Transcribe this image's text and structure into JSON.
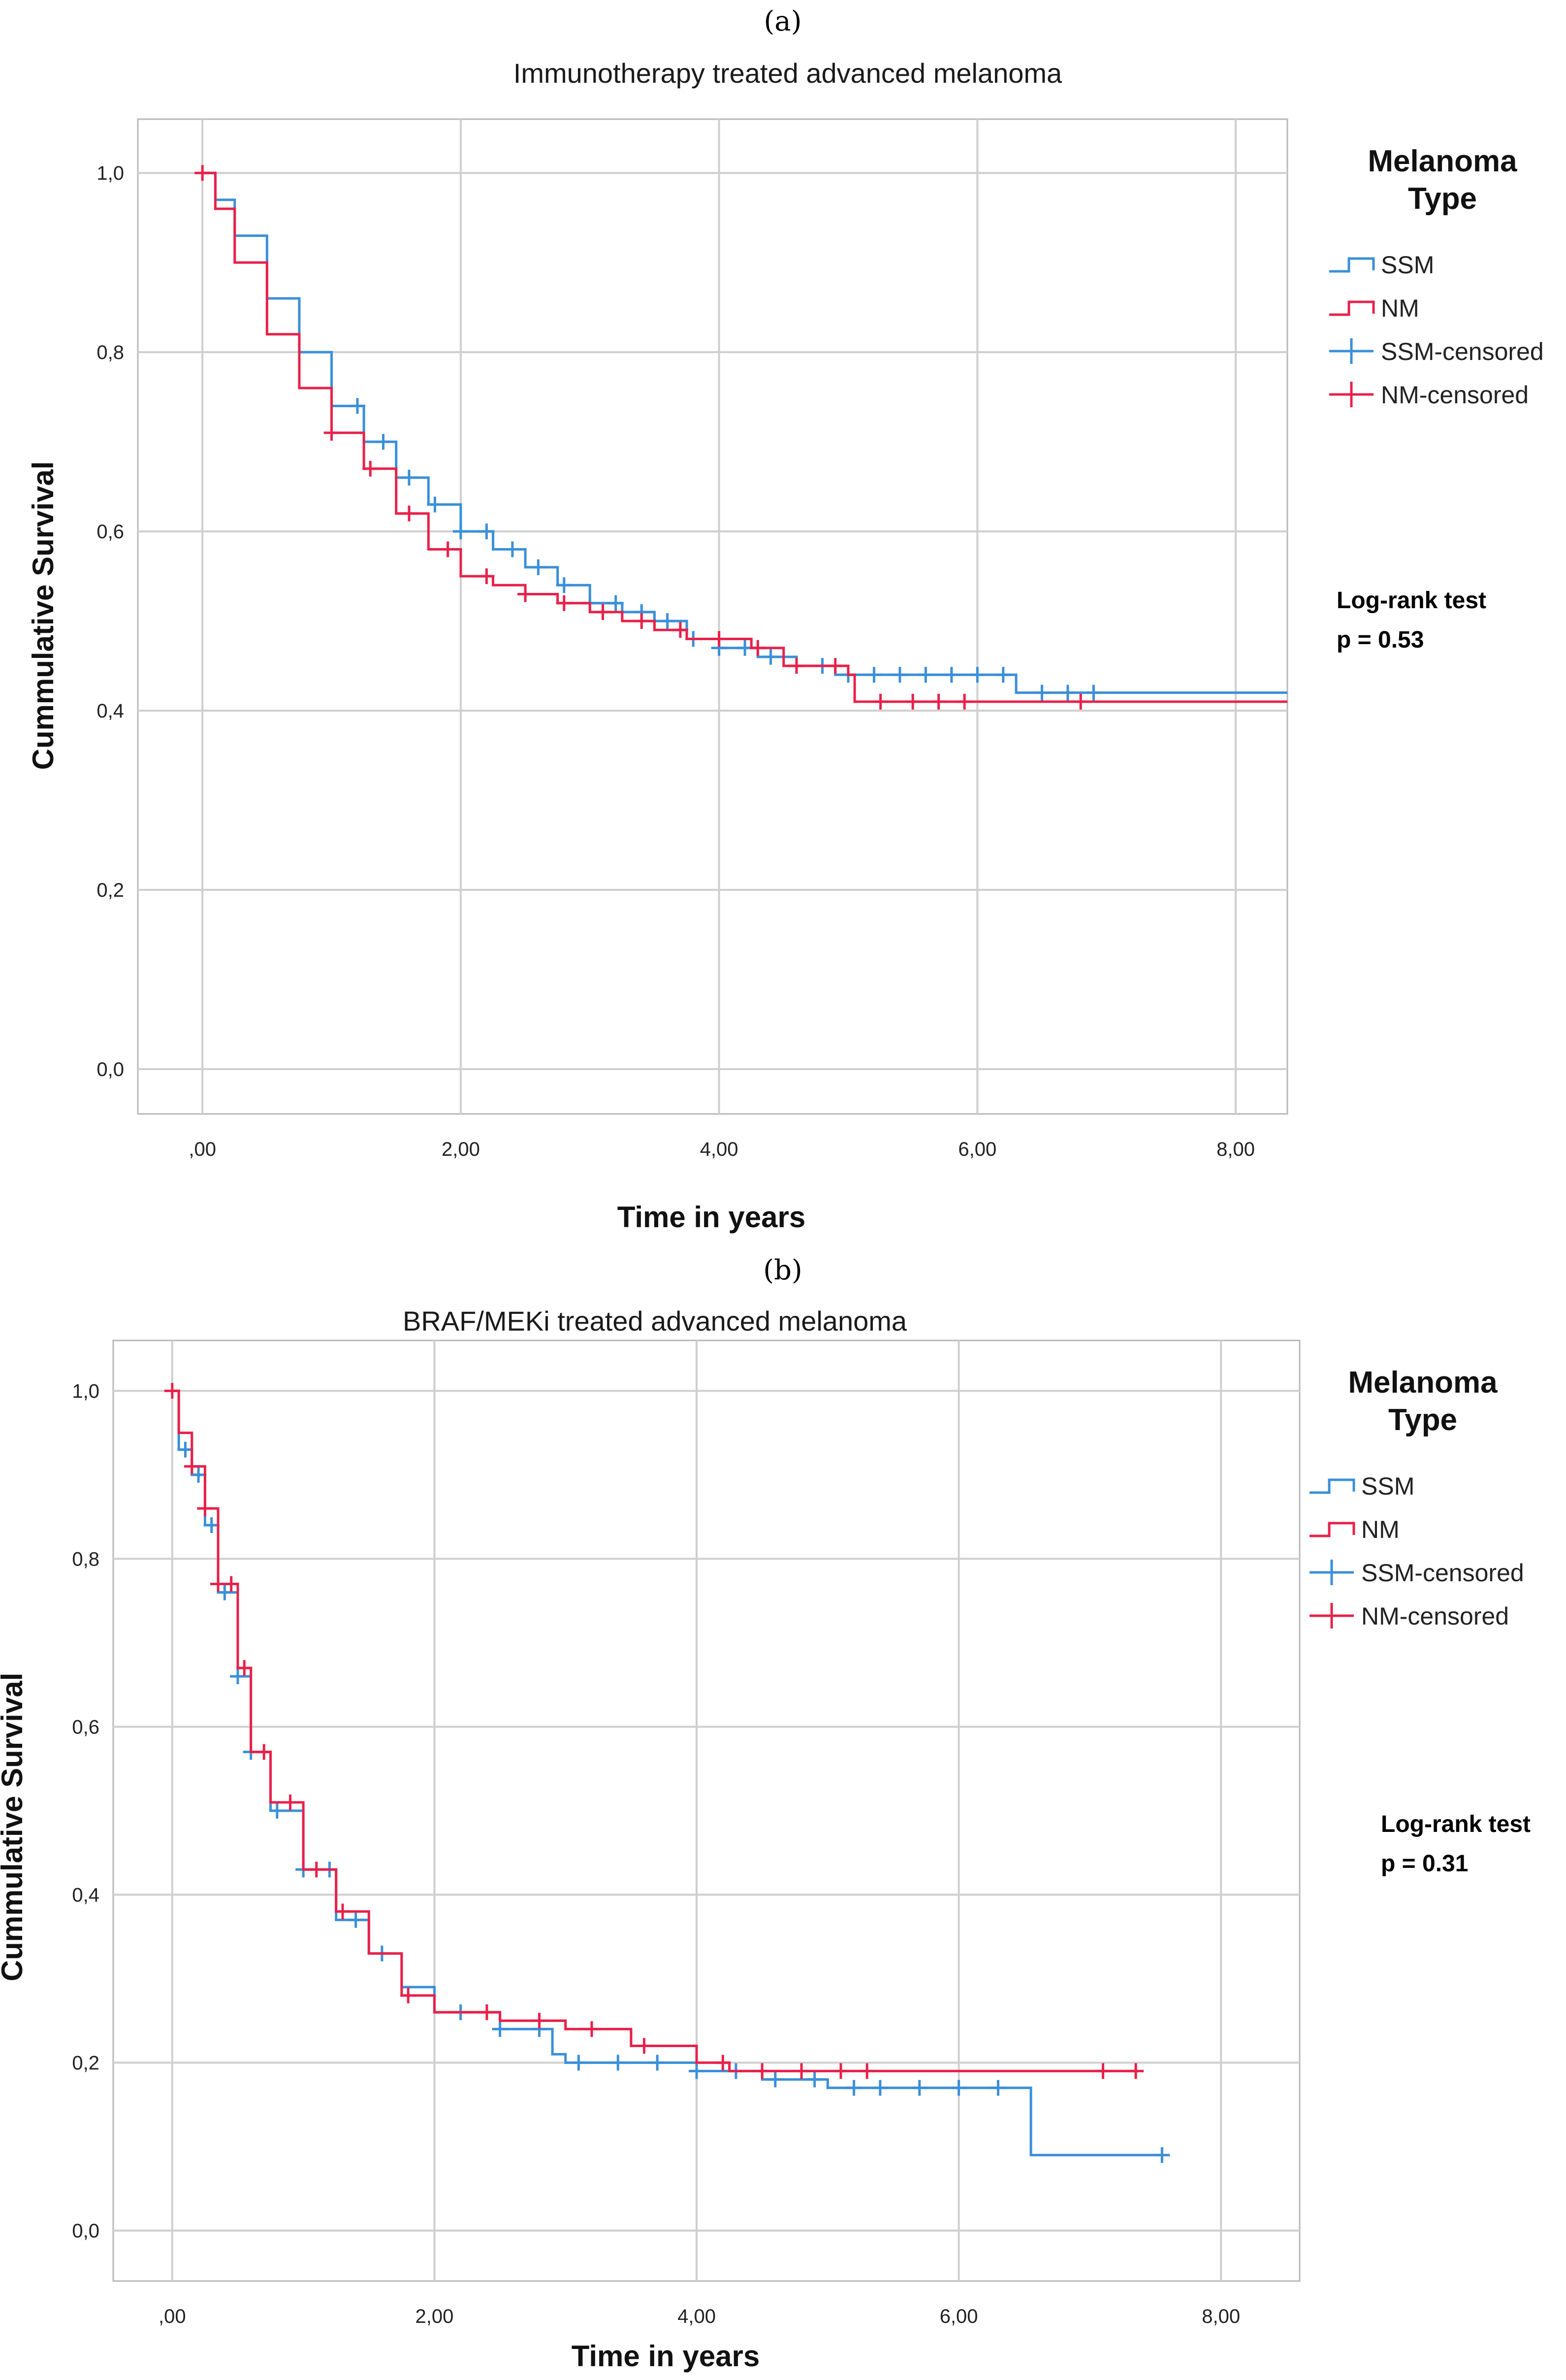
{
  "colors": {
    "SSM": "#3a8fd9",
    "NM": "#e8214a"
  },
  "chart_data": [
    {
      "type": "line",
      "panel_label": "(a)",
      "title": "Immunotherapy treated advanced melanoma",
      "xlabel": "Time in years",
      "ylabel": "Cummulative Survival",
      "xlim": [
        -0.5,
        8.4
      ],
      "ylim": [
        -0.05,
        1.06
      ],
      "x_ticks": [
        0,
        2,
        4,
        6,
        8
      ],
      "x_tick_labels": [
        ",00",
        "2,00",
        "4,00",
        "6,00",
        "8,00"
      ],
      "y_ticks": [
        0,
        0.2,
        0.4,
        0.6,
        0.8,
        1.0
      ],
      "y_tick_labels": [
        "0,0",
        "0,2",
        "0,4",
        "0,6",
        "0,8",
        "1,0"
      ],
      "grid": true,
      "legend": {
        "title": "Melanoma Type",
        "title_lines": [
          "Melanoma",
          "Type"
        ],
        "placement": "right",
        "entries": [
          "SSM",
          "NM",
          "SSM-censored",
          "NM-censored"
        ]
      },
      "annotation": {
        "lines": [
          "Log-rank test",
          "p = 0.53"
        ]
      },
      "series": [
        {
          "name": "SSM",
          "x": [
            0,
            0.1,
            0.25,
            0.5,
            0.75,
            1.0,
            1.25,
            1.5,
            1.75,
            2.0,
            2.25,
            2.5,
            2.75,
            3.0,
            3.25,
            3.5,
            3.75,
            4.0,
            4.3,
            4.6,
            4.9,
            5.3,
            5.7,
            6.0,
            6.25,
            6.3,
            7.0,
            8.4
          ],
          "values": [
            1.0,
            0.97,
            0.93,
            0.86,
            0.8,
            0.74,
            0.7,
            0.66,
            0.63,
            0.6,
            0.58,
            0.56,
            0.54,
            0.52,
            0.51,
            0.5,
            0.48,
            0.47,
            0.46,
            0.45,
            0.44,
            0.44,
            0.44,
            0.44,
            0.44,
            0.42,
            0.42,
            0.42
          ],
          "censored_x": [
            1.2,
            1.4,
            1.6,
            1.8,
            2.0,
            2.2,
            2.4,
            2.6,
            2.8,
            3.0,
            3.2,
            3.4,
            3.6,
            3.8,
            4.0,
            4.2,
            4.4,
            4.6,
            4.8,
            5.0,
            5.2,
            5.4,
            5.6,
            5.8,
            6.0,
            6.2,
            6.5,
            6.7,
            6.9
          ]
        },
        {
          "name": "NM",
          "x": [
            0,
            0.1,
            0.25,
            0.5,
            0.75,
            1.0,
            1.25,
            1.5,
            1.75,
            2.0,
            2.25,
            2.5,
            2.75,
            3.0,
            3.25,
            3.5,
            3.75,
            4.0,
            4.25,
            4.5,
            4.75,
            5.0,
            5.05,
            5.5,
            6.0,
            7.0,
            8.4
          ],
          "values": [
            1.0,
            0.96,
            0.9,
            0.82,
            0.76,
            0.71,
            0.67,
            0.62,
            0.58,
            0.55,
            0.54,
            0.53,
            0.52,
            0.51,
            0.5,
            0.49,
            0.48,
            0.48,
            0.47,
            0.45,
            0.45,
            0.44,
            0.41,
            0.41,
            0.41,
            0.41,
            0.41
          ],
          "censored_x": [
            0,
            1.0,
            1.3,
            1.6,
            1.9,
            2.2,
            2.5,
            2.8,
            3.1,
            3.4,
            3.7,
            4.0,
            4.3,
            4.6,
            4.9,
            5.25,
            5.5,
            5.7,
            5.9,
            6.8
          ]
        }
      ]
    },
    {
      "type": "line",
      "panel_label": "(b)",
      "title": "BRAF/MEKi treated advanced melanoma",
      "xlabel": "Time in years",
      "ylabel": "Cummulative Survival",
      "xlim": [
        -0.45,
        8.6
      ],
      "ylim": [
        -0.06,
        1.06
      ],
      "x_ticks": [
        0,
        2,
        4,
        6,
        8
      ],
      "x_tick_labels": [
        ",00",
        "2,00",
        "4,00",
        "6,00",
        "8,00"
      ],
      "y_ticks": [
        0,
        0.2,
        0.4,
        0.6,
        0.8,
        1.0
      ],
      "y_tick_labels": [
        "0,0",
        "0,2",
        "0,4",
        "0,6",
        "0,8",
        "1,0"
      ],
      "grid": true,
      "legend": {
        "title": "Melanoma Type",
        "title_lines": [
          "Melanoma",
          "Type"
        ],
        "placement": "right",
        "entries": [
          "SSM",
          "NM",
          "SSM-censored",
          "NM-censored"
        ]
      },
      "annotation": {
        "lines": [
          "Log-rank test",
          "p = 0.31"
        ]
      },
      "series": [
        {
          "name": "SSM",
          "x": [
            0,
            0.05,
            0.15,
            0.25,
            0.35,
            0.5,
            0.6,
            0.75,
            1.0,
            1.25,
            1.5,
            1.75,
            2.0,
            2.5,
            2.9,
            3.0,
            3.5,
            4.0,
            4.5,
            5.0,
            5.5,
            6.0,
            6.5,
            6.55,
            7.55
          ],
          "values": [
            1.0,
            0.93,
            0.9,
            0.84,
            0.76,
            0.66,
            0.57,
            0.5,
            0.43,
            0.37,
            0.33,
            0.29,
            0.26,
            0.24,
            0.21,
            0.2,
            0.2,
            0.19,
            0.18,
            0.17,
            0.17,
            0.17,
            0.17,
            0.09,
            0.09
          ],
          "censored_x": [
            0.1,
            0.2,
            0.3,
            0.4,
            0.5,
            0.6,
            0.8,
            1.0,
            1.2,
            1.4,
            1.6,
            2.2,
            2.5,
            2.8,
            3.1,
            3.4,
            3.7,
            4.0,
            4.3,
            4.6,
            4.9,
            5.2,
            5.4,
            5.7,
            6.0,
            6.3,
            7.55
          ]
        },
        {
          "name": "NM",
          "x": [
            0,
            0.05,
            0.15,
            0.25,
            0.35,
            0.5,
            0.6,
            0.75,
            1.0,
            1.25,
            1.5,
            1.75,
            2.0,
            2.5,
            3.0,
            3.5,
            4.0,
            4.25,
            4.5,
            5.0,
            5.5,
            6.0,
            7.0,
            7.35
          ],
          "values": [
            1.0,
            0.95,
            0.91,
            0.86,
            0.77,
            0.67,
            0.57,
            0.51,
            0.43,
            0.38,
            0.33,
            0.28,
            0.26,
            0.25,
            0.24,
            0.22,
            0.2,
            0.19,
            0.19,
            0.19,
            0.19,
            0.19,
            0.19,
            0.19
          ],
          "censored_x": [
            0,
            0.15,
            0.25,
            0.35,
            0.45,
            0.55,
            0.7,
            0.9,
            1.1,
            1.3,
            1.8,
            2.4,
            2.8,
            3.2,
            3.6,
            4.2,
            4.5,
            4.8,
            5.1,
            5.3,
            7.1,
            7.35
          ]
        }
      ]
    }
  ]
}
